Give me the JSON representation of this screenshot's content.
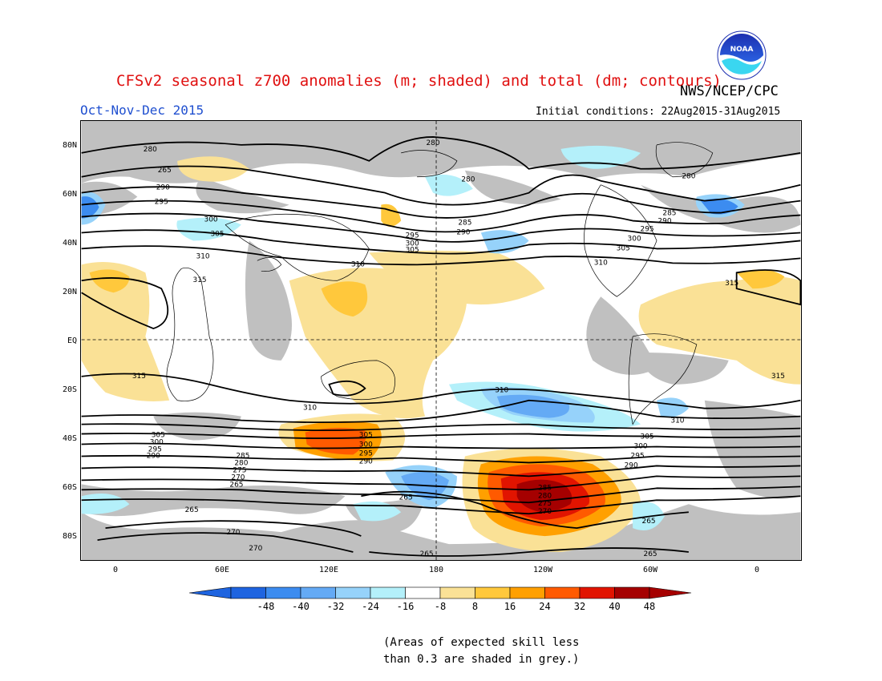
{
  "header": {
    "title": "CFSv2 seasonal z700 anomalies (m; shaded) and total (dm; contours)",
    "agency": "NWS/NCEP/CPC",
    "period": "Oct-Nov-Dec 2015",
    "initial_conditions": "Initial conditions: 22Aug2015-31Aug2015",
    "logo_text": "NOAA"
  },
  "colors": {
    "title": "#e01010",
    "period": "#2050d0",
    "skill_grey": "#c0c0c0",
    "neg": [
      "#1e64e0",
      "#3c8cf0",
      "#64aaf5",
      "#96d2fa",
      "#b4f0fa"
    ],
    "pos": [
      "#fae196",
      "#ffc83c",
      "#ffa000",
      "#ff5a00",
      "#e11400",
      "#a50000"
    ]
  },
  "map": {
    "lat_labels": [
      "80N",
      "60N",
      "40N",
      "20N",
      "EQ",
      "20S",
      "40S",
      "60S",
      "80S"
    ],
    "lon_labels": [
      "0",
      "60E",
      "120E",
      "180",
      "120W",
      "60W",
      "0"
    ],
    "contour_labels": [
      "280",
      "265",
      "290",
      "295",
      "300",
      "305",
      "310",
      "315",
      "285",
      "270",
      "275"
    ]
  },
  "colorbar": {
    "ticks": [
      "-48",
      "-40",
      "-32",
      "-24",
      "-16",
      "-8",
      "8",
      "16",
      "24",
      "32",
      "40",
      "48"
    ]
  },
  "note": {
    "line1": "(Areas of expected skill less",
    "line2": "than 0.3 are shaded in grey.)"
  }
}
